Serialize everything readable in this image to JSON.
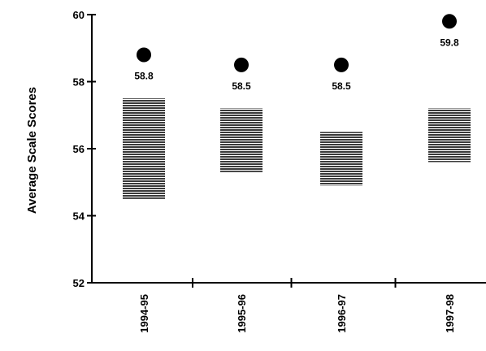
{
  "chart_data": {
    "type": "scatter",
    "title": "",
    "xlabel": "",
    "ylabel": "Average Scale Scores",
    "ylim": [
      52,
      60
    ],
    "yticks": [
      52,
      54,
      56,
      58,
      60
    ],
    "grid": false,
    "legend": "none",
    "categories": [
      "1994-95",
      "1995-96",
      "1996-97",
      "1997-98"
    ],
    "series": [
      {
        "values": [
          58.8,
          58.5,
          58.5,
          59.8
        ]
      }
    ],
    "ranges": [
      {
        "low": 54.5,
        "high": 57.5
      },
      {
        "low": 55.3,
        "high": 57.2
      },
      {
        "low": 54.9,
        "high": 56.5
      },
      {
        "low": 55.6,
        "high": 57.2
      }
    ],
    "data_labels": [
      "58.8",
      "58.5",
      "58.5",
      "59.8"
    ],
    "colors": {
      "point": "#000000",
      "range": "#555555",
      "axis": "#000000"
    }
  }
}
